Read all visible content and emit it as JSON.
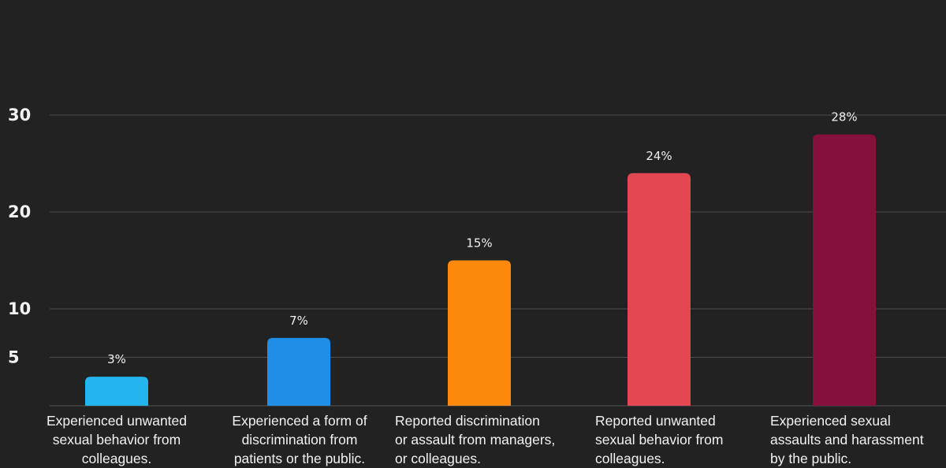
{
  "chart_data": {
    "type": "bar",
    "y_ticks": [
      "30",
      "20",
      "10",
      "5"
    ],
    "categories": [
      [
        "Experienced unwanted",
        "sexual behavior from",
        "colleagues."
      ],
      [
        "Experienced a form of",
        "discrimination from",
        "patients or the public."
      ],
      [
        "Reported discrimination",
        "or assault from managers,",
        "or colleagues."
      ],
      [
        "Reported unwanted",
        "sexual behavior from",
        "colleagues."
      ],
      [
        "Experienced sexual",
        "assaults and harassment",
        "by the public."
      ]
    ],
    "values": [
      3,
      7,
      15,
      24,
      28
    ],
    "value_labels": [
      "3%",
      "7%",
      "15%",
      "24%",
      "28%"
    ],
    "colors": [
      "#23b6ee",
      "#1e8ee6",
      "#fb8a0c",
      "#e24752",
      "#86103c"
    ],
    "background": "#222222",
    "gridlines": true
  }
}
